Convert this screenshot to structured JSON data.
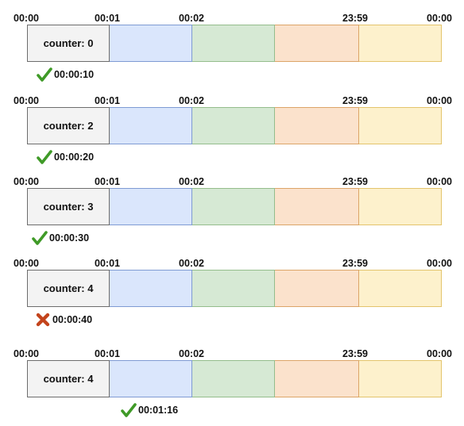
{
  "tick_labels": [
    "00:00",
    "00:01",
    "00:02",
    "23:59",
    "00:00"
  ],
  "rows": [
    {
      "counter": "counter: 0",
      "status": "check",
      "time": "00:00:10"
    },
    {
      "counter": "counter: 2",
      "status": "check",
      "time": "00:00:20"
    },
    {
      "counter": "counter: 3",
      "status": "check",
      "time": "00:00:30"
    },
    {
      "counter": "counter: 4",
      "status": "cross",
      "time": "00:00:40"
    },
    {
      "counter": "counter: 4",
      "status": "check",
      "time": "00:01:16"
    }
  ],
  "colors": {
    "check": "#3f9a27",
    "cross": "#c3441c"
  }
}
